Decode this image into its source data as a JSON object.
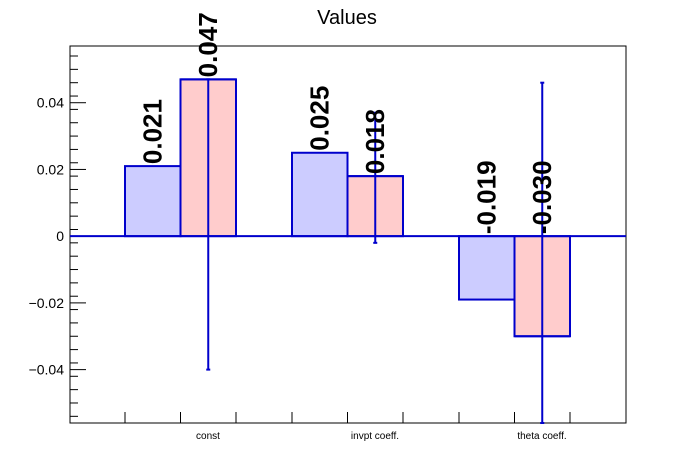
{
  "chart_data": {
    "type": "bar",
    "title": "Values",
    "categories": [
      "const",
      "invpt coeff.",
      "theta coeff."
    ],
    "ylim": [
      -0.056,
      0.057
    ],
    "yticks": [
      -0.04,
      -0.02,
      0,
      0.02,
      0.04
    ],
    "ytick_labels": [
      "−0.04",
      "−0.02",
      "0",
      "0.02",
      "0.04"
    ],
    "grid": false,
    "series": [
      {
        "values": [
          0.021,
          0.025,
          -0.019
        ],
        "labels": [
          "0.021",
          "0.025",
          "-0.019"
        ],
        "fill": "#ccccff",
        "stroke": "#0000cc"
      },
      {
        "values": [
          0.047,
          0.018,
          -0.03
        ],
        "labels": [
          "0.047",
          "0.018",
          "-0.030"
        ],
        "errors": [
          [
            -0.04,
            0.047
          ],
          [
            -0.002,
            0.037
          ],
          [
            -0.056,
            0.046
          ]
        ],
        "fill": "#ffcccc",
        "stroke": "#0000cc"
      }
    ]
  }
}
